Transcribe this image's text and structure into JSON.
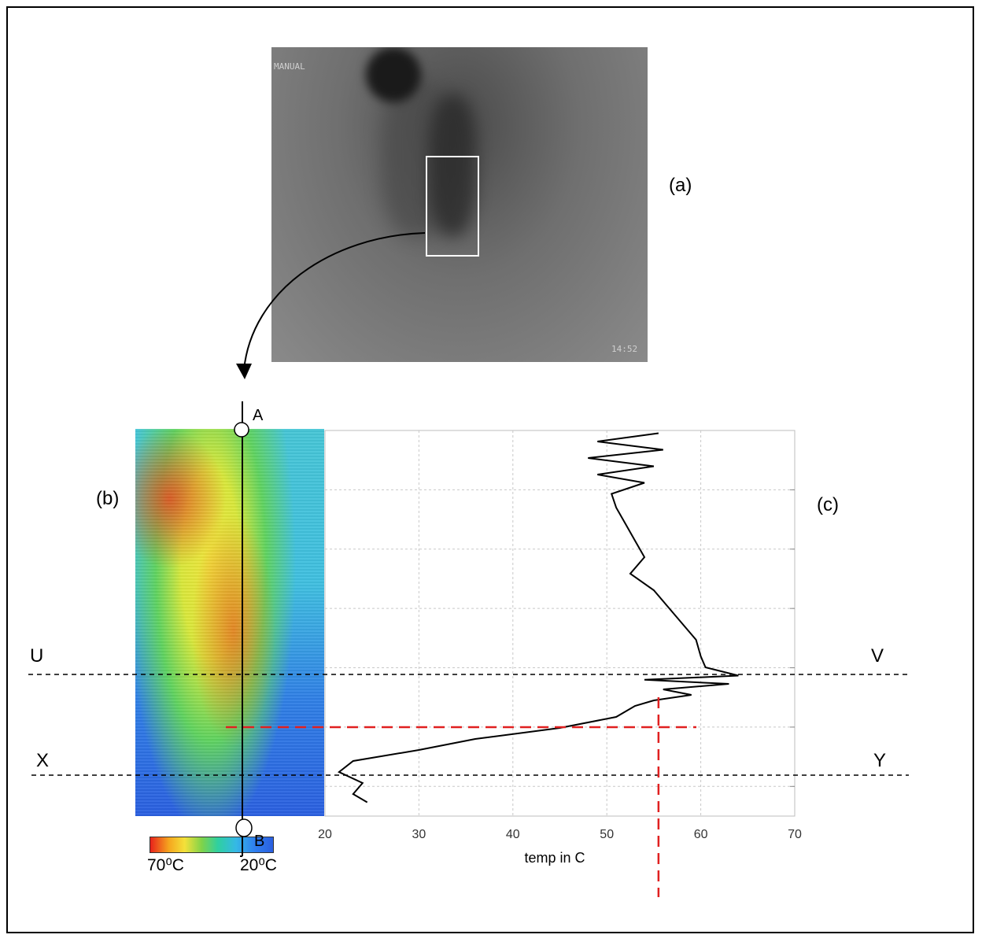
{
  "panels": {
    "a_label": "(a)",
    "b_label": "(b)",
    "c_label": "(c)"
  },
  "ir_image": {
    "mode_text": "MANUAL",
    "time_text": "14:52"
  },
  "profile_line": {
    "start_label": "A",
    "end_label": "B"
  },
  "colorbar": {
    "min_label": "70⁰C",
    "max_label": "20⁰C",
    "hot_color": "#e8221c",
    "cold_color": "#2a5fe0"
  },
  "reference_lines": {
    "upper_left": "U",
    "upper_right": "V",
    "lower_left": "X",
    "lower_right": "Y"
  },
  "chart_data": {
    "type": "line",
    "xlabel": "temp in C",
    "ylabel": "",
    "xlim": [
      20,
      70
    ],
    "x_ticks": [
      20,
      30,
      40,
      50,
      60,
      70
    ],
    "grid": true,
    "series": [
      {
        "line_color": "#000000",
        "points": [
          [
            55.5,
            1
          ],
          [
            49,
            4
          ],
          [
            56,
            7
          ],
          [
            48,
            10
          ],
          [
            55,
            13
          ],
          [
            49,
            16
          ],
          [
            54,
            19
          ],
          [
            50.5,
            23
          ],
          [
            51,
            28
          ],
          [
            52,
            34
          ],
          [
            53,
            40
          ],
          [
            54,
            46
          ],
          [
            52.5,
            52
          ],
          [
            55,
            58
          ],
          [
            56.5,
            64
          ],
          [
            58,
            70
          ],
          [
            59.5,
            76
          ],
          [
            60,
            82
          ],
          [
            60.5,
            86
          ],
          [
            64,
            89
          ],
          [
            54,
            90.5
          ],
          [
            63,
            92
          ],
          [
            56,
            94
          ],
          [
            59,
            96
          ],
          [
            55,
            98
          ],
          [
            53,
            100
          ],
          [
            51,
            104
          ],
          [
            45,
            108
          ],
          [
            36,
            112
          ],
          [
            30,
            116
          ],
          [
            23,
            120
          ],
          [
            21.5,
            124
          ],
          [
            24,
            128
          ],
          [
            23,
            132
          ],
          [
            24.5,
            135
          ]
        ]
      }
    ],
    "y_direction": "top-to-bottom (A to B)",
    "reference_temperature": 55.5
  }
}
